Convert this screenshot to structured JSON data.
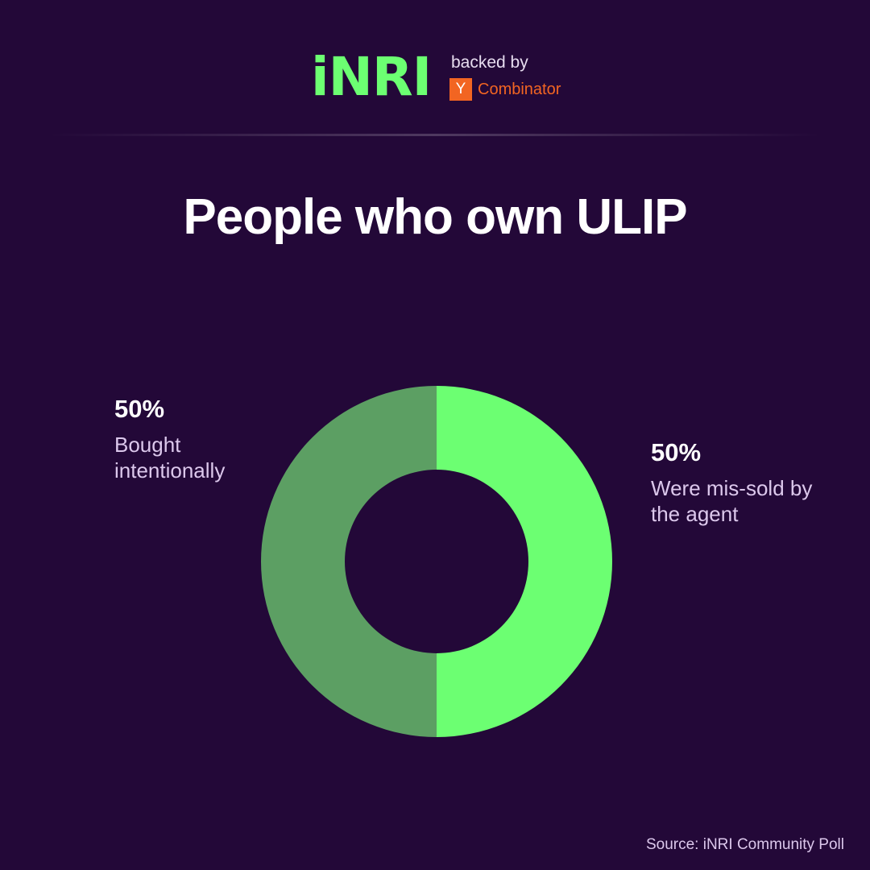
{
  "header": {
    "logo_text": "iNRI",
    "backed_by": "backed by",
    "yc_badge": "Y",
    "yc_name": "Combinator"
  },
  "colors": {
    "background": "#230838",
    "brand_green": "#6cff72",
    "yc_orange": "#f26522"
  },
  "chart_data": {
    "type": "pie",
    "title": "People who own ULIP",
    "donut": true,
    "slices": [
      {
        "label_line1": "Were mis-sold by",
        "label_line2": "the agent",
        "value": 50,
        "value_label": "50%",
        "color": "#6cff72"
      },
      {
        "label_line1": "Bought",
        "label_line2": "intentionally",
        "value": 50,
        "value_label": "50%",
        "color": "#5c9f63"
      }
    ]
  },
  "footer": {
    "source": "Source: iNRI Community Poll"
  }
}
